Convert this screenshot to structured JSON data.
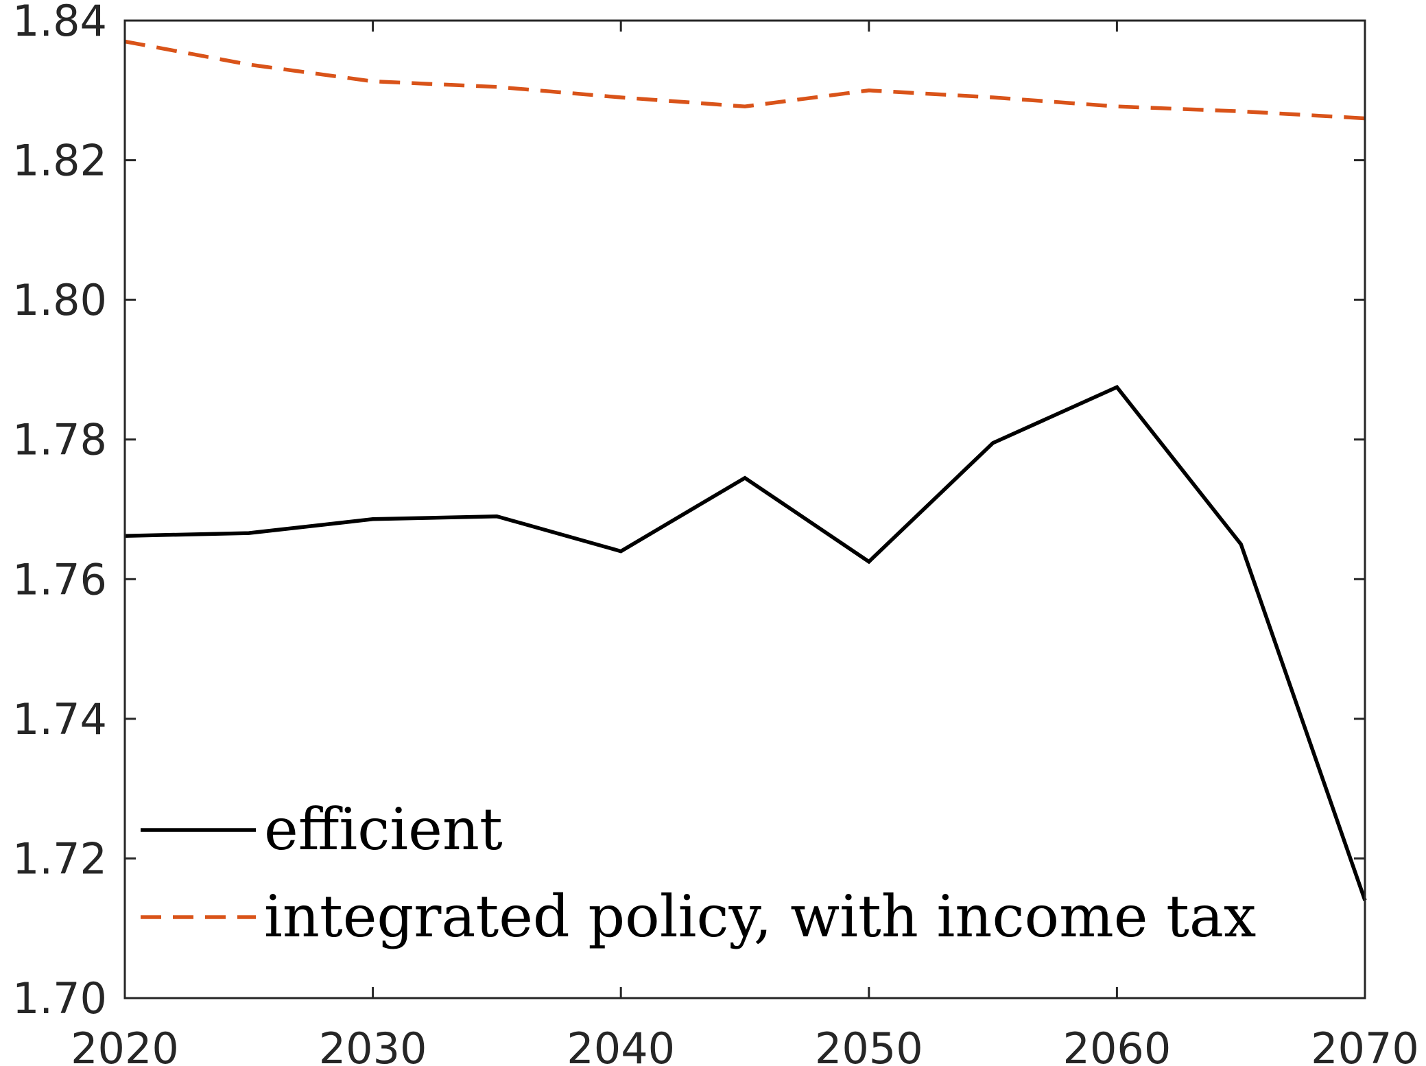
{
  "chart_data": {
    "type": "line",
    "title": "",
    "xlabel": "",
    "ylabel": "",
    "xlim": [
      2020,
      2070
    ],
    "ylim": [
      1.7,
      1.84
    ],
    "x_ticks": [
      2020,
      2030,
      2040,
      2050,
      2060,
      2070
    ],
    "x_tick_labels": [
      "2020",
      "2030",
      "2040",
      "2050",
      "2060",
      "2070"
    ],
    "y_ticks": [
      1.7,
      1.72,
      1.74,
      1.76,
      1.78,
      1.8,
      1.82,
      1.84
    ],
    "y_tick_labels": [
      "1.70",
      "1.72",
      "1.74",
      "1.76",
      "1.78",
      "1.80",
      "1.82",
      "1.84"
    ],
    "grid": false,
    "legend_position": "bottom-left",
    "x": [
      2020,
      2025,
      2030,
      2035,
      2040,
      2045,
      2050,
      2055,
      2060,
      2065,
      2070
    ],
    "series": [
      {
        "name": "efficient",
        "color": "#000000",
        "dash": "solid",
        "values": [
          1.7662,
          1.7666,
          1.7686,
          1.769,
          1.764,
          1.7745,
          1.7625,
          1.7795,
          1.7875,
          1.765,
          1.714
        ]
      },
      {
        "name": "integrated policy, with income tax",
        "color": "#D95319",
        "dash": "dashed",
        "values": [
          1.837,
          1.8337,
          1.8313,
          1.8305,
          1.829,
          1.8277,
          1.83,
          1.829,
          1.8277,
          1.827,
          1.826
        ]
      }
    ]
  }
}
